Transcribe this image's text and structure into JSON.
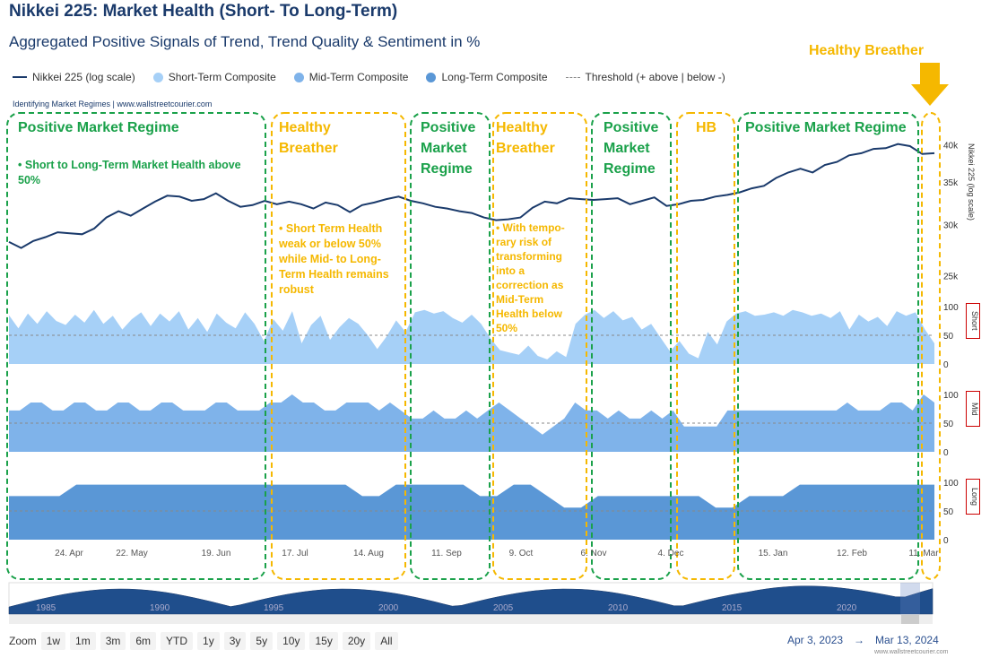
{
  "title": "Nikkei 225: Market Health (Short- To Long-Term)",
  "subtitle": "Aggregated Positive Signals of Trend, Trend Quality & Sentiment in %",
  "legend": [
    {
      "label": "Nikkei 225 (log scale)",
      "color": "#1a3a6b",
      "symbol": "line"
    },
    {
      "label": "Short-Term Composite",
      "color": "#a6d0f7",
      "symbol": "dot"
    },
    {
      "label": "Mid-Term Composite",
      "color": "#7fb3ea",
      "symbol": "dot"
    },
    {
      "label": "Long-Term Composite",
      "color": "#5a97d6",
      "symbol": "dot"
    },
    {
      "label": "Threshold (+ above | below -)",
      "color": "#888888",
      "symbol": "dash"
    }
  ],
  "credit": "Identifying Market Regimes | www.wallstreetcourier.com",
  "annotation_top": "Healthy Breather",
  "regimes": [
    {
      "label": "Positive Market Regime",
      "color": "#1aa14a",
      "note": "Short to Long-Term Market Health above 50%"
    },
    {
      "label": "Healthy Breather",
      "color": "#f5b800",
      "note": "Short Term Health weak or below 50% while Mid- to Long-Term Health remains robust"
    },
    {
      "label": "Positive Market Regime",
      "color": "#1aa14a",
      "note": ""
    },
    {
      "label": "Healthy Breather",
      "color": "#f5b800",
      "note": "With tempo-rary risk of transforming into a correction as Mid-Term Health below 50%"
    },
    {
      "label": "Positive Market Regime",
      "color": "#1aa14a",
      "note": ""
    },
    {
      "label": "HB",
      "color": "#f5b800",
      "note": ""
    },
    {
      "label": "Positive Market Regime",
      "color": "#1aa14a",
      "note": ""
    },
    {
      "label": "",
      "color": "#f5b800",
      "note": ""
    }
  ],
  "chart_data": {
    "type": "line",
    "x_ticks": [
      "24. Apr",
      "22. May",
      "19. Jun",
      "17. Jul",
      "14. Aug",
      "11. Sep",
      "9. Oct",
      "6. Nov",
      "4. Dec",
      "15. Jan",
      "12. Feb",
      "11. Mar"
    ],
    "price": {
      "name": "Nikkei 225 (log scale)",
      "axis_label": "Nikkei 225 (log scale)",
      "axis_ticks": [
        "40k",
        "35k",
        "30k",
        "25k"
      ],
      "scale": "log",
      "values": [
        28200,
        27600,
        28300,
        28700,
        29200,
        29100,
        29000,
        29600,
        30800,
        31500,
        31000,
        31800,
        32600,
        33300,
        33200,
        32700,
        32900,
        33600,
        32700,
        32000,
        32200,
        32700,
        32300,
        32600,
        32300,
        31800,
        32500,
        32200,
        31400,
        32200,
        32500,
        32900,
        33200,
        32700,
        32400,
        32000,
        31800,
        31500,
        31300,
        30800,
        30500,
        30600,
        30800,
        31900,
        32600,
        32400,
        33000,
        32900,
        32800,
        32900,
        33000,
        32300,
        32700,
        33100,
        32100,
        32300,
        32700,
        32800,
        33200,
        33400,
        33700,
        34200,
        34500,
        35500,
        36200,
        36700,
        36200,
        37200,
        37600,
        38500,
        38800,
        39400,
        39500,
        40100,
        39800,
        38700,
        38800
      ]
    },
    "short": {
      "name": "Short-Term Composite",
      "axis_label": "Short",
      "ylim": [
        0,
        100
      ],
      "threshold": 50,
      "values": [
        85,
        62,
        88,
        70,
        92,
        75,
        68,
        86,
        72,
        94,
        70,
        84,
        60,
        78,
        90,
        66,
        88,
        74,
        92,
        60,
        80,
        56,
        88,
        72,
        62,
        90,
        70,
        40,
        78,
        58,
        92,
        36,
        68,
        84,
        42,
        64,
        80,
        70,
        50,
        26,
        48,
        76,
        56,
        90,
        94,
        88,
        92,
        80,
        72,
        86,
        70,
        44,
        24,
        20,
        16,
        32,
        14,
        8,
        22,
        12,
        70,
        86,
        94,
        80,
        92,
        76,
        82,
        60,
        70,
        46,
        22,
        40,
        18,
        10,
        56,
        34,
        74,
        88,
        92,
        84,
        86,
        90,
        84,
        94,
        90,
        84,
        88,
        80,
        92,
        60,
        86,
        74,
        82,
        66,
        92,
        84,
        90,
        60,
        36
      ]
    },
    "mid": {
      "name": "Mid-Term Composite",
      "axis_label": "Mid",
      "ylim": [
        0,
        100
      ],
      "threshold": 50,
      "values": [
        72,
        72,
        86,
        86,
        72,
        72,
        86,
        86,
        72,
        72,
        86,
        86,
        72,
        72,
        86,
        86,
        72,
        72,
        72,
        86,
        86,
        72,
        72,
        72,
        86,
        86,
        100,
        86,
        86,
        72,
        72,
        86,
        86,
        86,
        72,
        86,
        72,
        58,
        58,
        72,
        58,
        58,
        72,
        58,
        72,
        86,
        72,
        58,
        44,
        30,
        44,
        58,
        86,
        72,
        72,
        58,
        72,
        58,
        58,
        72,
        58,
        72,
        44,
        44,
        44,
        44,
        72,
        72,
        72,
        72,
        72,
        72,
        72,
        72,
        72,
        72,
        72,
        86,
        72,
        72,
        72,
        86,
        86,
        72,
        100,
        86
      ]
    },
    "long": {
      "name": "Long-Term Composite",
      "axis_label": "Long",
      "ylim": [
        0,
        100
      ],
      "threshold": 50,
      "values": [
        76,
        76,
        76,
        76,
        96,
        96,
        96,
        96,
        96,
        96,
        96,
        96,
        96,
        96,
        96,
        96,
        96,
        96,
        96,
        96,
        96,
        76,
        76,
        96,
        96,
        96,
        96,
        96,
        76,
        76,
        96,
        96,
        76,
        56,
        56,
        76,
        76,
        76,
        76,
        76,
        76,
        76,
        56,
        56,
        76,
        76,
        76,
        96,
        96,
        96,
        96,
        96,
        96,
        96,
        96,
        96
      ]
    },
    "right_axis_ticks": [
      "100",
      "50",
      "0"
    ]
  },
  "navigator": {
    "year_labels": [
      "1985",
      "1990",
      "1995",
      "2000",
      "2005",
      "2010",
      "2015",
      "2020"
    ]
  },
  "zoom": {
    "label": "Zoom",
    "buttons": [
      "1w",
      "1m",
      "3m",
      "6m",
      "YTD",
      "1y",
      "3y",
      "5y",
      "10y",
      "15y",
      "20y",
      "All"
    ]
  },
  "range": {
    "from": "Apr 3, 2023",
    "arrow": "→",
    "to": "Mar 13, 2024"
  },
  "site": "www.wallstreetcourier.com",
  "colors": {
    "green": "#1aa14a",
    "yellow": "#f5b800",
    "navy": "#1a3a6b"
  }
}
